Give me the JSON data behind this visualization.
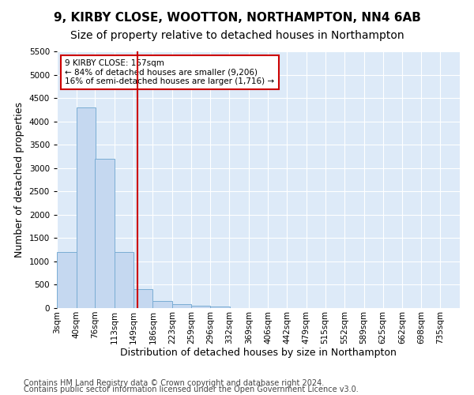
{
  "title": "9, KIRBY CLOSE, WOOTTON, NORTHAMPTON, NN4 6AB",
  "subtitle": "Size of property relative to detached houses in Northampton",
  "xlabel": "Distribution of detached houses by size in Northampton",
  "ylabel": "Number of detached properties",
  "footnote1": "Contains HM Land Registry data © Crown copyright and database right 2024.",
  "footnote2": "Contains public sector information licensed under the Open Government Licence v3.0.",
  "annotation_title": "9 KIRBY CLOSE: 157sqm",
  "annotation_line1": "← 84% of detached houses are smaller (9,206)",
  "annotation_line2": "16% of semi-detached houses are larger (1,716) →",
  "bar_left_edges": [
    3,
    40,
    76,
    113,
    149,
    186,
    223,
    259,
    296,
    332,
    369,
    406,
    442,
    479,
    515,
    552,
    589,
    625,
    662,
    698
  ],
  "bar_heights": [
    1200,
    4300,
    3200,
    1200,
    400,
    150,
    80,
    55,
    40,
    0,
    0,
    0,
    0,
    0,
    0,
    0,
    0,
    0,
    0,
    0
  ],
  "bin_width": 37,
  "bar_color": "#c5d8f0",
  "bar_edge_color": "#7aadd4",
  "vline_x": 157,
  "vline_color": "#cc0000",
  "annotation_box_color": "#cc0000",
  "ylim": [
    0,
    5500
  ],
  "yticks": [
    0,
    500,
    1000,
    1500,
    2000,
    2500,
    3000,
    3500,
    4000,
    4500,
    5000,
    5500
  ],
  "bg_color": "#ddeaf8",
  "fig_color": "#ffffff",
  "grid_color": "#ffffff",
  "title_fontsize": 11,
  "subtitle_fontsize": 10,
  "axis_label_fontsize": 9,
  "tick_fontsize": 7.5,
  "footnote_fontsize": 7,
  "xtick_labels": [
    "3sqm",
    "40sqm",
    "76sqm",
    "113sqm",
    "149sqm",
    "186sqm",
    "223sqm",
    "259sqm",
    "296sqm",
    "332sqm",
    "369sqm",
    "406sqm",
    "442sqm",
    "479sqm",
    "515sqm",
    "552sqm",
    "589sqm",
    "625sqm",
    "662sqm",
    "698sqm",
    "735sqm"
  ]
}
